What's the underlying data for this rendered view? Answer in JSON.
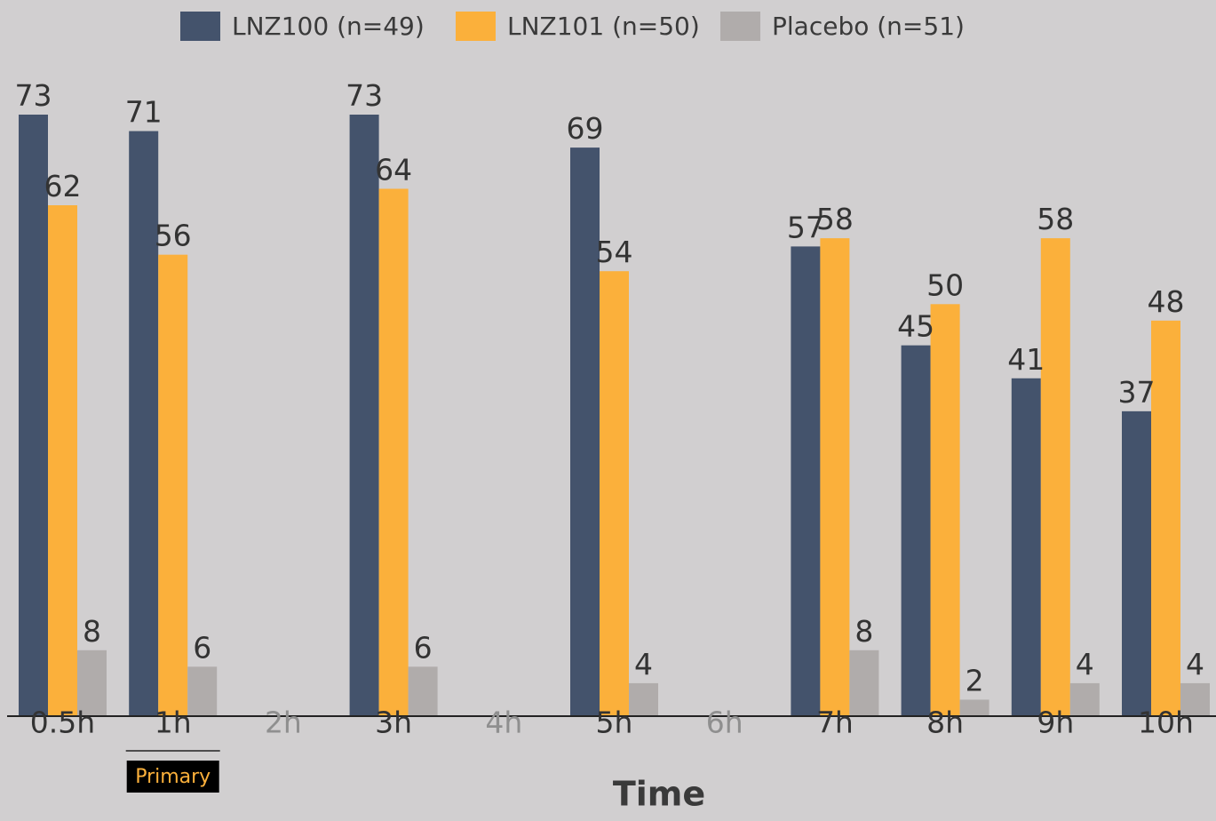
{
  "chart_data": {
    "type": "bar",
    "title": "",
    "xlabel": "Time",
    "ylabel": "",
    "ylim": [
      0,
      75
    ],
    "grid": false,
    "legend_position": "top-center",
    "categories": [
      "0.5h",
      "1h",
      "2h",
      "3h",
      "4h",
      "5h",
      "6h",
      "7h",
      "8h",
      "9h",
      "10h"
    ],
    "category_active": [
      true,
      true,
      false,
      true,
      false,
      true,
      false,
      true,
      true,
      true,
      true
    ],
    "series": [
      {
        "name": "LNZ100 (n=49)",
        "color": "#44536c",
        "values": [
          73,
          71,
          null,
          73,
          null,
          69,
          null,
          57,
          45,
          41,
          37
        ]
      },
      {
        "name": "LNZ101 (n=50)",
        "color": "#fbb03b",
        "values": [
          62,
          56,
          null,
          64,
          null,
          54,
          null,
          58,
          50,
          58,
          48
        ]
      },
      {
        "name": "Placebo (n=51)",
        "color": "#b0acab",
        "values": [
          8,
          6,
          null,
          6,
          null,
          4,
          null,
          8,
          2,
          4,
          4
        ]
      }
    ],
    "annotations": [
      {
        "category": "1h",
        "text": "Primary",
        "text_color": "#fbb03b",
        "background": "#000000"
      }
    ],
    "colors": {
      "tick_active": "#333333",
      "tick_inactive": "#8f8f8f",
      "axis": "#222222"
    }
  }
}
